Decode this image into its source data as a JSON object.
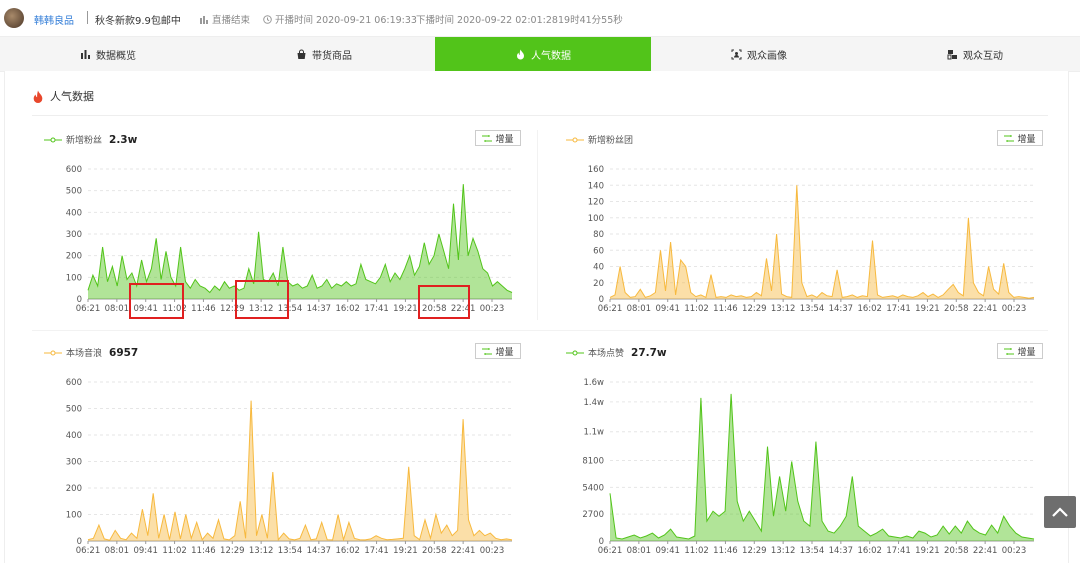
{
  "header": {
    "shop_name": "韩韩良品",
    "promo": "秋冬新款9.9包邮中",
    "live_status": "直播结束",
    "start_time": "开播时间 2020-09-21 06:19:33",
    "end_time": "下播时间 2020-09-22 02:01:28",
    "duration": "19时41分55秒"
  },
  "tabs": [
    {
      "label": "数据概览",
      "icon": "bar-chart-icon"
    },
    {
      "label": "带货商品",
      "icon": "shopping-bag-icon"
    },
    {
      "label": "人气数据",
      "icon": "flame-icon",
      "active": true
    },
    {
      "label": "观众画像",
      "icon": "user-scan-icon"
    },
    {
      "label": "观众互动",
      "icon": "interaction-icon"
    }
  ],
  "section_title": "人气数据",
  "increment_label": "增量",
  "colors": {
    "green": "#52c41a",
    "yellow": "#f7b93e",
    "accent_tab": "#52c41a"
  },
  "chart_data": [
    {
      "type": "area",
      "legend": "新增粉丝",
      "summary": "2.3w",
      "color": "#52c41a",
      "y_ticks": [
        "600",
        "500",
        "400",
        "300",
        "200",
        "100",
        "0"
      ],
      "y_values": [
        600,
        500,
        400,
        300,
        200,
        100,
        0
      ],
      "ylim": [
        0,
        600
      ],
      "x_ticks": [
        "06:21",
        "08:01",
        "09:41",
        "11:02",
        "11:46",
        "12:29",
        "13:12",
        "13:54",
        "14:37",
        "16:02",
        "17:41",
        "19:21",
        "20:58",
        "22:41",
        "00:23"
      ],
      "series": [
        40,
        110,
        60,
        240,
        80,
        150,
        60,
        200,
        90,
        120,
        60,
        180,
        80,
        140,
        280,
        90,
        220,
        100,
        60,
        240,
        80,
        50,
        90,
        60,
        50,
        30,
        60,
        40,
        80,
        50,
        60,
        40,
        50,
        140,
        70,
        310,
        90,
        80,
        120,
        60,
        240,
        80,
        60,
        70,
        50,
        60,
        110,
        50,
        60,
        90,
        50,
        70,
        60,
        80,
        60,
        70,
        160,
        90,
        80,
        70,
        100,
        160,
        80,
        120,
        90,
        140,
        200,
        110,
        150,
        260,
        160,
        200,
        300,
        220,
        140,
        440,
        180,
        530,
        200,
        280,
        220,
        140,
        120,
        60,
        80,
        60,
        40,
        30
      ]
    },
    {
      "type": "area",
      "legend": "新增粉丝团",
      "summary": "",
      "color": "#f7b93e",
      "y_ticks": [
        "160",
        "140",
        "120",
        "100",
        "80",
        "60",
        "40",
        "20",
        "0"
      ],
      "y_values": [
        160,
        140,
        120,
        100,
        80,
        60,
        40,
        20,
        0
      ],
      "ylim": [
        0,
        160
      ],
      "x_ticks": [
        "06:21",
        "08:01",
        "09:41",
        "11:02",
        "11:46",
        "12:29",
        "13:12",
        "13:54",
        "14:37",
        "16:02",
        "17:41",
        "19:21",
        "20:58",
        "22:41",
        "00:23"
      ],
      "series": [
        2,
        5,
        40,
        8,
        2,
        3,
        12,
        2,
        4,
        8,
        60,
        10,
        70,
        5,
        48,
        40,
        8,
        3,
        5,
        2,
        30,
        2,
        3,
        2,
        5,
        3,
        4,
        2,
        3,
        8,
        4,
        50,
        10,
        80,
        6,
        3,
        2,
        140,
        20,
        3,
        5,
        2,
        8,
        4,
        3,
        36,
        2,
        3,
        5,
        2,
        4,
        3,
        72,
        5,
        2,
        3,
        4,
        2,
        5,
        3,
        2,
        4,
        8,
        3,
        6,
        2,
        5,
        12,
        18,
        8,
        4,
        100,
        20,
        8,
        4,
        40,
        12,
        6,
        44,
        8,
        2,
        3,
        2,
        1,
        2
      ]
    },
    {
      "type": "area",
      "legend": "本场音浪",
      "summary": "6957",
      "color": "#f7b93e",
      "y_ticks": [
        "600",
        "500",
        "400",
        "300",
        "200",
        "100",
        "0"
      ],
      "y_values": [
        600,
        500,
        400,
        300,
        200,
        100,
        0
      ],
      "ylim": [
        0,
        600
      ],
      "x_ticks": [
        "06:21",
        "08:01",
        "09:41",
        "11:02",
        "11:46",
        "12:29",
        "13:12",
        "13:54",
        "14:37",
        "16:02",
        "17:41",
        "19:21",
        "20:58",
        "22:41",
        "00:23"
      ],
      "series": [
        5,
        10,
        60,
        8,
        3,
        40,
        10,
        5,
        30,
        10,
        120,
        20,
        180,
        10,
        100,
        5,
        110,
        8,
        100,
        10,
        70,
        5,
        30,
        10,
        80,
        8,
        4,
        20,
        150,
        10,
        530,
        20,
        100,
        10,
        260,
        5,
        30,
        8,
        4,
        10,
        60,
        5,
        8,
        70,
        5,
        4,
        100,
        5,
        70,
        10,
        5,
        4,
        8,
        20,
        10,
        5,
        6,
        8,
        10,
        280,
        20,
        5,
        80,
        10,
        100,
        30,
        60,
        20,
        40,
        460,
        80,
        20,
        40,
        20,
        30,
        10,
        5,
        8,
        4
      ]
    },
    {
      "type": "area",
      "legend": "本场点赞",
      "summary": "27.7w",
      "color": "#52c41a",
      "y_ticks": [
        "1.6w",
        "1.4w",
        "1.1w",
        "8100",
        "5400",
        "2700",
        "0"
      ],
      "y_values": [
        16000,
        14000,
        11000,
        8100,
        5400,
        2700,
        0
      ],
      "ylim": [
        0,
        16000
      ],
      "x_ticks": [
        "06:21",
        "08:01",
        "09:41",
        "11:02",
        "11:46",
        "12:29",
        "13:12",
        "13:54",
        "14:37",
        "16:02",
        "17:41",
        "19:21",
        "20:58",
        "22:41",
        "00:23"
      ],
      "series": [
        4800,
        300,
        200,
        400,
        600,
        300,
        500,
        800,
        300,
        600,
        1200,
        400,
        300,
        200,
        500,
        14400,
        2000,
        3000,
        2500,
        3000,
        14800,
        4000,
        2000,
        3000,
        2000,
        1000,
        9500,
        2500,
        6500,
        3000,
        8000,
        4000,
        2000,
        1500,
        10000,
        2000,
        1000,
        800,
        1500,
        2500,
        6500,
        1500,
        1000,
        500,
        800,
        1200,
        500,
        400,
        300,
        500,
        300,
        1000,
        800,
        400,
        600,
        1500,
        700,
        1500,
        800,
        2000,
        1200,
        800,
        600,
        1600,
        800,
        2500,
        1500,
        800,
        400,
        300,
        200
      ]
    }
  ]
}
